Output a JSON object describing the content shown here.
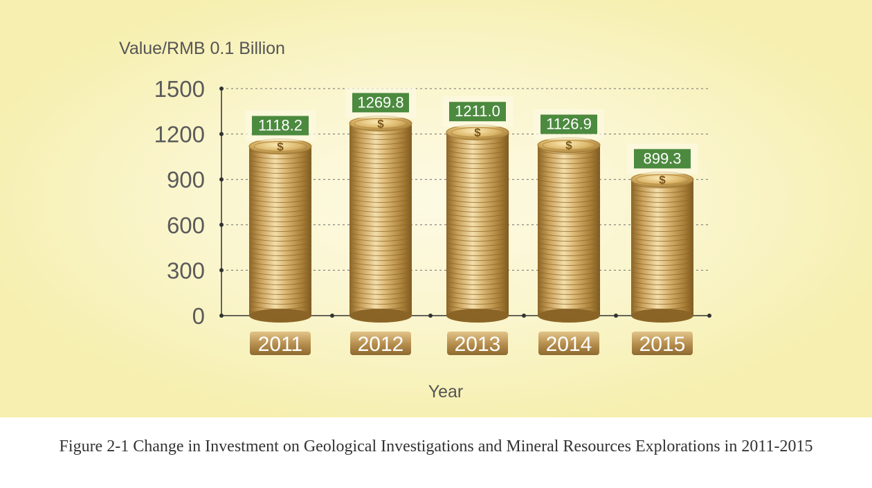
{
  "chart_data": {
    "type": "bar",
    "ylabel": "Value/RMB 0.1 Billion",
    "xlabel": "Year",
    "categories": [
      "2011",
      "2012",
      "2013",
      "2014",
      "2015"
    ],
    "values": [
      1118.2,
      1269.8,
      1211.0,
      1126.9,
      899.3
    ],
    "value_labels": [
      "1118.2",
      "1269.8",
      "1211.0",
      "1126.9",
      "899.3"
    ],
    "yticks": [
      0,
      300,
      600,
      900,
      1200,
      1500
    ],
    "ylim": [
      0,
      1500
    ],
    "grid": true,
    "legend": "none",
    "bar_style": "coin-stack",
    "colors": {
      "background": "#f7f1b4",
      "background_glow": "#fbf7d3",
      "coin_light": "#f0d9a0",
      "coin_dark": "#9a7430",
      "label_box": "#4c8a3f",
      "year_badge": "#b99356",
      "axis": "#333333",
      "tick_text": "#5a5a5a"
    }
  },
  "caption": "Figure 2-1 Change in Investment on Geological Investigations and Mineral Resources Explorations in 2011-2015"
}
